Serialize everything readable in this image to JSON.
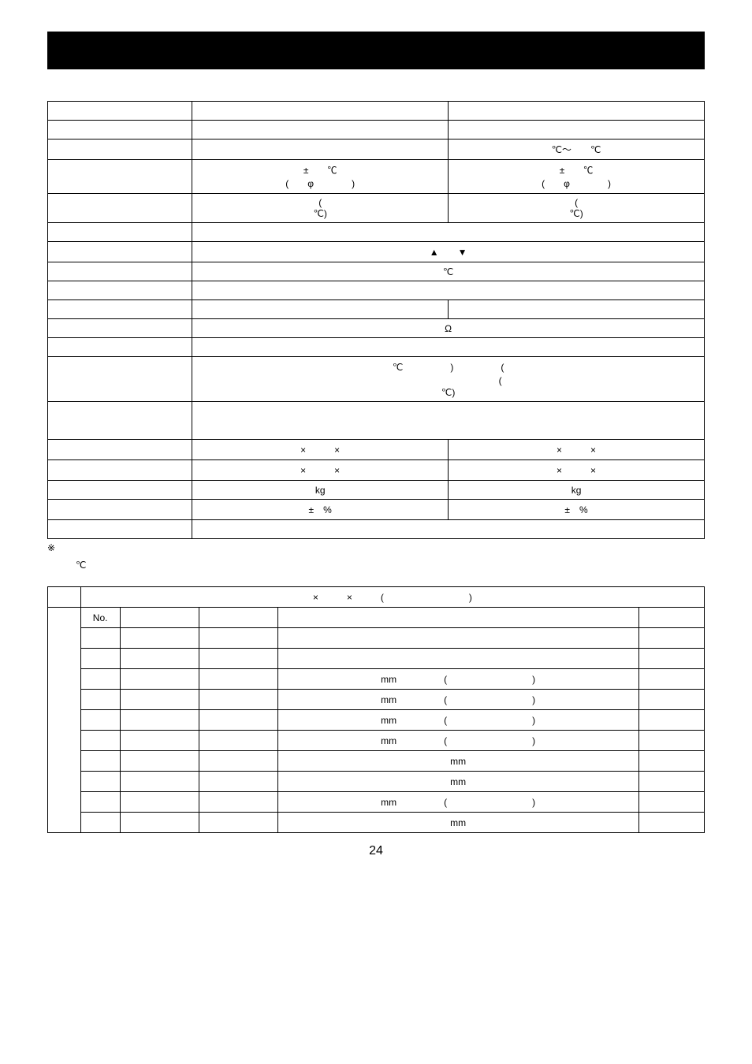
{
  "blackbar": {},
  "table1": {
    "rows": [
      {
        "type": "3col",
        "c1": "",
        "c2": "",
        "c3": ""
      },
      {
        "type": "3col",
        "c1": "",
        "c2": "",
        "c3": ""
      },
      {
        "type": "2col",
        "c1": "",
        "c2": "℃～　　℃"
      },
      {
        "type": "3col_tall",
        "c1": "",
        "c2": "±　　℃\n(　　φ　　　　)",
        "c3": "±　　℃\n(　　φ　　　　)"
      },
      {
        "type": "3col",
        "c1": "",
        "c2": "(\n℃)",
        "c3": "(\n℃)"
      },
      {
        "type": "merged",
        "c1": "",
        "c2": ""
      },
      {
        "type": "merged",
        "c1": "",
        "c2": "▲　　▼"
      },
      {
        "type": "merged",
        "c1": "",
        "c2": "℃"
      },
      {
        "type": "merged",
        "c1": "",
        "c2": ""
      },
      {
        "type": "3col",
        "c1": "",
        "c2": "",
        "c3": ""
      },
      {
        "type": "merged",
        "c1": "",
        "c2": "Ω"
      },
      {
        "type": "merged",
        "c1": "",
        "c2": ""
      },
      {
        "type": "merged_tall",
        "c1": "",
        "c2": "℃　　　　　)　　　　　(\n　　　　　　　　　　　(\n℃)"
      },
      {
        "type": "merged_taller",
        "c1": "",
        "c2": ""
      },
      {
        "type": "3col",
        "c1": "",
        "c2": "×　　　×",
        "c3": "×　　　×"
      },
      {
        "type": "3col",
        "c1": "",
        "c2": "×　　　×",
        "c3": "×　　　×"
      },
      {
        "type": "3col",
        "c1": "",
        "c2": "kg",
        "c3": "kg"
      },
      {
        "type": "3col",
        "c1": "",
        "c2": "±　%",
        "c3": "±　%"
      },
      {
        "type": "merged",
        "c1": "",
        "c2": ""
      }
    ]
  },
  "note": "※",
  "degc": "℃",
  "table2": {
    "header": "×　　　×　　　(　　　　　　　　　)",
    "rows": [
      {
        "c2": "No.",
        "c3": "",
        "c4": "",
        "c5": "",
        "c6": ""
      },
      {
        "c2": "",
        "c3": "",
        "c4": "",
        "c5": "",
        "c6": ""
      },
      {
        "c2": "",
        "c3": "",
        "c4": "",
        "c5": "",
        "c6": ""
      },
      {
        "c2": "",
        "c3": "",
        "c4": "",
        "c5": "mm　　　　　(　　　　　　　　　)",
        "c6": ""
      },
      {
        "c2": "",
        "c3": "",
        "c4": "",
        "c5": "mm　　　　　(　　　　　　　　　)",
        "c6": ""
      },
      {
        "c2": "",
        "c3": "",
        "c4": "",
        "c5": "mm　　　　　(　　　　　　　　　)",
        "c6": ""
      },
      {
        "c2": "",
        "c3": "",
        "c4": "",
        "c5": "mm　　　　　(　　　　　　　　　)",
        "c6": ""
      },
      {
        "c2": "",
        "c3": "",
        "c4": "",
        "c5": "mm",
        "c6": ""
      },
      {
        "c2": "",
        "c3": "",
        "c4": "",
        "c5": "mm",
        "c6": ""
      },
      {
        "c2": "",
        "c3": "",
        "c4": "",
        "c5": "mm　　　　　(　　　　　　　　　)",
        "c6": ""
      },
      {
        "c2": "",
        "c3": "",
        "c4": "",
        "c5": "mm",
        "c6": ""
      }
    ]
  },
  "pageNumber": "24"
}
